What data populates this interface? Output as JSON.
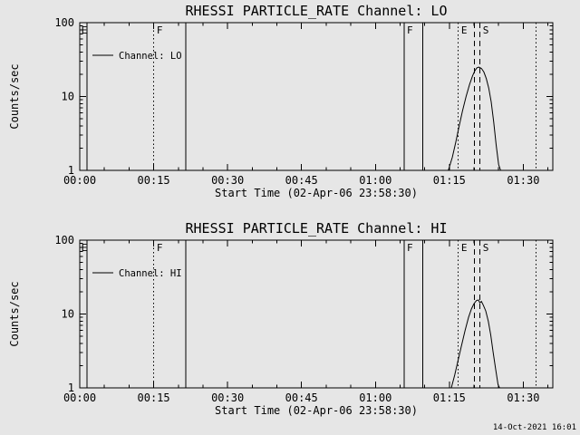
{
  "page": {
    "bg_color": "#e6e6e6",
    "fg_color": "#000000",
    "timestamp": "14-Oct-2021 16:01"
  },
  "chart_data": [
    {
      "type": "line",
      "panel_id": "lo",
      "title": "RHESSI PARTICLE_RATE Channel: LO",
      "ylabel": "Counts/sec",
      "xlabel": "Start Time (02-Apr-06 23:58:30)",
      "legend": "Channel: LO",
      "yscale": "log",
      "ylim": [
        1,
        100
      ],
      "ytick_labels": [
        "1",
        "10",
        "100"
      ],
      "xlim_minutes": [
        0,
        96
      ],
      "xtick_interval_min": 15,
      "xtick_minor_min": 5,
      "xtick_labels": [
        "00:00",
        "00:15",
        "00:30",
        "00:45",
        "01:00",
        "01:15",
        "01:30"
      ],
      "grid": false,
      "legend_position": "upper-left-inside",
      "event_lines": [
        {
          "style": "solid",
          "min": 1.5
        },
        {
          "style": "dotted",
          "min": 15
        },
        {
          "style": "solid",
          "min": 21.5
        },
        {
          "style": "solid",
          "min": 65.8
        },
        {
          "style": "solid",
          "min": 69.6
        },
        {
          "style": "dotted",
          "min": 76.8
        },
        {
          "style": "dashed",
          "min": 80.1
        },
        {
          "style": "dashed",
          "min": 81.2
        },
        {
          "style": "dotted",
          "min": 92.6
        }
      ],
      "event_labels": [
        {
          "text": "E",
          "min": 0.3
        },
        {
          "text": "F",
          "min": 15.6
        },
        {
          "text": "F",
          "min": 66.4
        },
        {
          "text": "E",
          "min": 77.4
        },
        {
          "text": "S",
          "min": 81.8
        }
      ],
      "series": [
        {
          "name": "Channel: LO",
          "points": [
            [
              74.8,
              1
            ],
            [
              75.6,
              1.5
            ],
            [
              76.3,
              2.4
            ],
            [
              77,
              4
            ],
            [
              77.7,
              6.5
            ],
            [
              78.4,
              10
            ],
            [
              79.1,
              14.5
            ],
            [
              79.7,
              19
            ],
            [
              80.2,
              22.5
            ],
            [
              80.6,
              24.5
            ],
            [
              81,
              25
            ],
            [
              81.5,
              24
            ],
            [
              82,
              21.5
            ],
            [
              82.5,
              17.5
            ],
            [
              83,
              13
            ],
            [
              83.5,
              8.5
            ],
            [
              84,
              4.5
            ],
            [
              84.5,
              2.2
            ],
            [
              85,
              1.2
            ],
            [
              85.4,
              1
            ]
          ]
        }
      ]
    },
    {
      "type": "line",
      "panel_id": "hi",
      "title": "RHESSI PARTICLE_RATE Channel: HI",
      "ylabel": "Counts/sec",
      "xlabel": "Start Time (02-Apr-06 23:58:30)",
      "legend": "Channel: HI",
      "yscale": "log",
      "ylim": [
        1,
        100
      ],
      "ytick_labels": [
        "1",
        "10",
        "100"
      ],
      "xlim_minutes": [
        0,
        96
      ],
      "xtick_interval_min": 15,
      "xtick_minor_min": 5,
      "xtick_labels": [
        "00:00",
        "00:15",
        "00:30",
        "00:45",
        "01:00",
        "01:15",
        "01:30"
      ],
      "grid": false,
      "legend_position": "upper-left-inside",
      "event_lines": [
        {
          "style": "solid",
          "min": 1.5
        },
        {
          "style": "dotted",
          "min": 15
        },
        {
          "style": "solid",
          "min": 21.5
        },
        {
          "style": "solid",
          "min": 65.8
        },
        {
          "style": "solid",
          "min": 69.6
        },
        {
          "style": "dotted",
          "min": 76.8
        },
        {
          "style": "dashed",
          "min": 80.1
        },
        {
          "style": "dashed",
          "min": 81.2
        },
        {
          "style": "dotted",
          "min": 92.6
        }
      ],
      "event_labels": [
        {
          "text": "E",
          "min": 0.3
        },
        {
          "text": "F",
          "min": 15.6
        },
        {
          "text": "F",
          "min": 66.4
        },
        {
          "text": "E",
          "min": 77.4
        },
        {
          "text": "S",
          "min": 81.8
        }
      ],
      "series": [
        {
          "name": "Channel: HI",
          "points": [
            [
              75.4,
              1
            ],
            [
              76.1,
              1.5
            ],
            [
              76.8,
              2.4
            ],
            [
              77.5,
              3.8
            ],
            [
              78.2,
              6
            ],
            [
              78.9,
              9
            ],
            [
              79.5,
              11.8
            ],
            [
              80,
              13.8
            ],
            [
              80.5,
              15.2
            ],
            [
              80.9,
              15.5
            ],
            [
              81.2,
              14.2
            ],
            [
              81.5,
              14.8
            ],
            [
              81.9,
              13.2
            ],
            [
              82.4,
              11
            ],
            [
              82.9,
              8
            ],
            [
              83.4,
              5.2
            ],
            [
              83.9,
              3
            ],
            [
              84.4,
              1.8
            ],
            [
              84.9,
              1.1
            ],
            [
              85.2,
              1
            ]
          ]
        }
      ]
    }
  ]
}
